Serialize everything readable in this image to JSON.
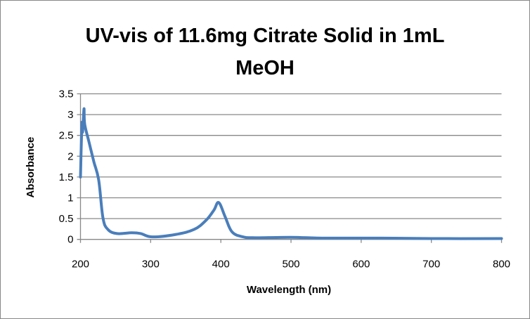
{
  "chart_data": {
    "type": "line",
    "title": "UV-vis of 11.6mg Citrate Solid in 1mL MeOH",
    "title_lines": [
      "UV-vis of 11.6mg Citrate Solid in 1mL",
      "MeOH"
    ],
    "xlabel": "Wavelength (nm)",
    "ylabel": "Absorbance",
    "xlim": [
      200,
      800
    ],
    "ylim": [
      0,
      3.5
    ],
    "xticks": [
      200,
      300,
      400,
      500,
      600,
      700,
      800
    ],
    "yticks": [
      0,
      0.5,
      1,
      1.5,
      2,
      2.5,
      3,
      3.5
    ],
    "ytick_labels": [
      "0",
      "0.5",
      "1",
      "1.5",
      "2",
      "2.5",
      "3",
      "3.5"
    ],
    "grid": "horizontal",
    "legend": "none",
    "series_color": "#4a7ebb",
    "series": [
      {
        "x": [
          200,
          202,
          203,
          205,
          206,
          212,
          219,
          226,
          232,
          239,
          252,
          273,
          286,
          302,
          336,
          362,
          379,
          390,
          397,
          406,
          416,
          432,
          450,
          500,
          550,
          630,
          700,
          800
        ],
        "y": [
          1.5,
          2.77,
          2.58,
          3.14,
          2.77,
          2.35,
          1.87,
          1.42,
          0.52,
          0.24,
          0.14,
          0.16,
          0.14,
          0.06,
          0.12,
          0.24,
          0.46,
          0.7,
          0.885,
          0.55,
          0.18,
          0.06,
          0.04,
          0.05,
          0.03,
          0.03,
          0.02,
          0.02
        ]
      }
    ]
  }
}
